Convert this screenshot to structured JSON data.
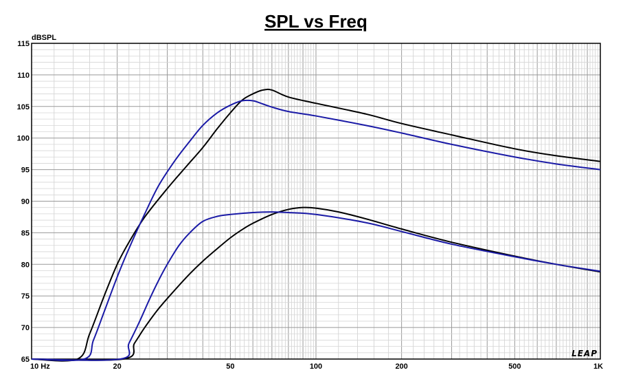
{
  "chart_data": {
    "type": "line",
    "title": "SPL vs Freq",
    "ylabel": "dBSPL",
    "xlabel": "",
    "x_scale": "log",
    "xlim": [
      10,
      1000
    ],
    "ylim": [
      65,
      115
    ],
    "grid": true,
    "brand_label": "LEAP",
    "x_tick_labels": [
      {
        "value": 10,
        "label": "10  Hz"
      },
      {
        "value": 20,
        "label": "20"
      },
      {
        "value": 50,
        "label": "50"
      },
      {
        "value": 100,
        "label": "100"
      },
      {
        "value": 200,
        "label": "200"
      },
      {
        "value": 500,
        "label": "500"
      },
      {
        "value": 1000,
        "label": "1K"
      }
    ],
    "y_ticks": [
      65,
      70,
      75,
      80,
      85,
      90,
      95,
      100,
      105,
      110,
      115
    ],
    "series": [
      {
        "color": "#000000",
        "points": [
          [
            10,
            65
          ],
          [
            14.5,
            65
          ],
          [
            16,
            69
          ],
          [
            18,
            75
          ],
          [
            20,
            80
          ],
          [
            22,
            83.5
          ],
          [
            25,
            87.5
          ],
          [
            30,
            92
          ],
          [
            35,
            95.5
          ],
          [
            40,
            98.5
          ],
          [
            45,
            101.5
          ],
          [
            50,
            104
          ],
          [
            55,
            106
          ],
          [
            60,
            107
          ],
          [
            65,
            107.6
          ],
          [
            70,
            107.6
          ],
          [
            80,
            106.5
          ],
          [
            100,
            105.5
          ],
          [
            150,
            103.8
          ],
          [
            200,
            102.3
          ],
          [
            300,
            100.5
          ],
          [
            500,
            98.3
          ],
          [
            700,
            97.2
          ],
          [
            1000,
            96.3
          ]
        ]
      },
      {
        "color": "#1a1aa6",
        "points": [
          [
            10,
            65
          ],
          [
            15.3,
            65
          ],
          [
            16.5,
            68
          ],
          [
            18,
            72.5
          ],
          [
            20,
            78
          ],
          [
            22,
            82.5
          ],
          [
            25,
            88
          ],
          [
            28,
            92.5
          ],
          [
            32,
            96.5
          ],
          [
            36,
            99.5
          ],
          [
            40,
            102
          ],
          [
            45,
            104
          ],
          [
            50,
            105.2
          ],
          [
            55,
            105.9
          ],
          [
            60,
            105.9
          ],
          [
            65,
            105.4
          ],
          [
            70,
            104.9
          ],
          [
            80,
            104.2
          ],
          [
            100,
            103.5
          ],
          [
            150,
            102
          ],
          [
            200,
            100.8
          ],
          [
            300,
            99
          ],
          [
            500,
            97
          ],
          [
            700,
            95.9
          ],
          [
            1000,
            95
          ]
        ]
      },
      {
        "color": "#000000",
        "points": [
          [
            10,
            65
          ],
          [
            21,
            65
          ],
          [
            23,
            67.5
          ],
          [
            25,
            70
          ],
          [
            28,
            73
          ],
          [
            32,
            76
          ],
          [
            36,
            78.5
          ],
          [
            40,
            80.5
          ],
          [
            45,
            82.5
          ],
          [
            50,
            84.2
          ],
          [
            55,
            85.5
          ],
          [
            60,
            86.5
          ],
          [
            70,
            87.9
          ],
          [
            80,
            88.7
          ],
          [
            90,
            89
          ],
          [
            100,
            88.9
          ],
          [
            120,
            88.3
          ],
          [
            150,
            87.2
          ],
          [
            200,
            85.6
          ],
          [
            300,
            83.5
          ],
          [
            500,
            81.3
          ],
          [
            700,
            80
          ],
          [
            1000,
            78.8
          ]
        ]
      },
      {
        "color": "#1a1aa6",
        "points": [
          [
            10,
            65
          ],
          [
            20.5,
            65
          ],
          [
            22,
            67.5
          ],
          [
            24,
            71
          ],
          [
            26,
            74.5
          ],
          [
            28,
            77.5
          ],
          [
            30,
            80
          ],
          [
            33,
            83
          ],
          [
            36,
            85
          ],
          [
            40,
            86.8
          ],
          [
            45,
            87.6
          ],
          [
            50,
            87.9
          ],
          [
            60,
            88.2
          ],
          [
            70,
            88.3
          ],
          [
            80,
            88.2
          ],
          [
            100,
            87.9
          ],
          [
            150,
            86.6
          ],
          [
            200,
            85.2
          ],
          [
            300,
            83.2
          ],
          [
            500,
            81.2
          ],
          [
            700,
            80
          ],
          [
            1000,
            78.9
          ]
        ]
      }
    ]
  }
}
